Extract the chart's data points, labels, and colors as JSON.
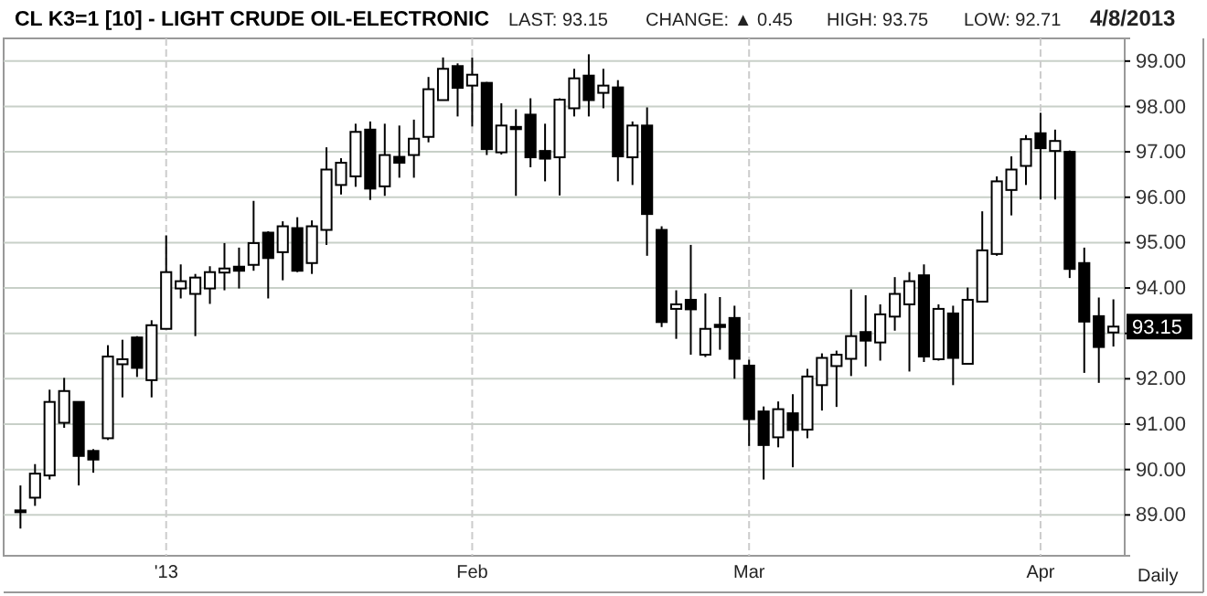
{
  "chart_data": {
    "type": "candlestick",
    "title": "CL K3=1 [10] - LIGHT CRUDE OIL-ELECTRONIC",
    "annotations": [
      "LAST: 93.15",
      "CHANGE: ▲ 0.45",
      "HIGH: 93.75",
      "LOW: 92.71",
      "4/8/2013",
      "Daily",
      {
        "text": "93.15",
        "y": 93.15
      }
    ],
    "categories": [
      null,
      null,
      null,
      null,
      null,
      null,
      null,
      null,
      null,
      null,
      "'13",
      null,
      null,
      null,
      null,
      null,
      null,
      null,
      null,
      null,
      null,
      null,
      null,
      null,
      null,
      null,
      null,
      null,
      null,
      null,
      null,
      "Feb",
      null,
      null,
      null,
      null,
      null,
      null,
      null,
      null,
      null,
      null,
      null,
      null,
      null,
      null,
      null,
      null,
      null,
      null,
      "Mar",
      null,
      null,
      null,
      null,
      null,
      null,
      null,
      null,
      null,
      null,
      null,
      null,
      null,
      null,
      null,
      null,
      null,
      null,
      null,
      "Apr",
      null,
      null,
      null,
      null,
      null
    ],
    "series": [
      {
        "color": "#000000",
        "ohlc": [
          [
            89.1,
            89.65,
            88.7,
            89.1
          ],
          [
            89.38,
            90.12,
            89.2,
            89.91
          ],
          [
            89.87,
            91.76,
            89.78,
            91.49
          ],
          [
            91.03,
            92.02,
            90.92,
            91.73
          ],
          [
            91.49,
            91.49,
            89.65,
            90.3
          ],
          [
            90.41,
            90.45,
            89.93,
            90.22
          ],
          [
            90.69,
            92.74,
            90.65,
            92.49
          ],
          [
            92.32,
            92.86,
            91.59,
            92.43
          ],
          [
            92.91,
            92.94,
            92.04,
            92.24
          ],
          [
            91.97,
            93.29,
            91.59,
            93.18
          ],
          [
            93.1,
            95.16,
            93.1,
            94.35
          ],
          [
            93.99,
            94.52,
            93.77,
            94.15
          ],
          [
            93.87,
            94.31,
            92.94,
            94.23
          ],
          [
            93.99,
            94.48,
            93.65,
            94.35
          ],
          [
            94.34,
            94.99,
            93.95,
            94.43
          ],
          [
            94.47,
            94.89,
            93.99,
            94.38
          ],
          [
            94.51,
            95.92,
            94.38,
            94.99
          ],
          [
            95.22,
            95.25,
            93.77,
            94.66
          ],
          [
            94.79,
            95.47,
            94.17,
            95.36
          ],
          [
            95.32,
            95.56,
            94.35,
            94.38
          ],
          [
            94.55,
            95.49,
            94.31,
            95.36
          ],
          [
            95.28,
            97.1,
            94.95,
            96.61
          ],
          [
            96.27,
            96.86,
            96.06,
            96.76
          ],
          [
            96.46,
            97.62,
            96.23,
            97.44
          ],
          [
            97.49,
            97.67,
            95.94,
            96.19
          ],
          [
            96.24,
            97.62,
            96.03,
            96.93
          ],
          [
            96.89,
            97.58,
            96.43,
            96.76
          ],
          [
            96.93,
            97.71,
            96.43,
            97.29
          ],
          [
            97.33,
            98.65,
            97.21,
            98.38
          ],
          [
            98.14,
            99.08,
            98.14,
            98.83
          ],
          [
            98.89,
            98.95,
            97.78,
            98.41
          ],
          [
            98.46,
            99.08,
            97.56,
            98.7
          ],
          [
            98.52,
            98.54,
            96.93,
            97.06
          ],
          [
            96.99,
            98.07,
            96.94,
            97.58
          ],
          [
            97.55,
            97.94,
            96.03,
            97.5
          ],
          [
            97.82,
            98.18,
            96.66,
            96.88
          ],
          [
            97.02,
            97.62,
            96.35,
            96.85
          ],
          [
            96.88,
            98.18,
            96.04,
            98.15
          ],
          [
            97.96,
            98.83,
            97.78,
            98.62
          ],
          [
            98.68,
            99.15,
            97.78,
            98.14
          ],
          [
            98.3,
            98.83,
            97.96,
            98.46
          ],
          [
            98.42,
            98.58,
            96.35,
            96.9
          ],
          [
            96.88,
            97.67,
            96.27,
            97.58
          ],
          [
            97.58,
            97.98,
            94.71,
            95.63
          ],
          [
            95.28,
            95.36,
            93.14,
            93.25
          ],
          [
            93.54,
            93.95,
            92.88,
            93.64
          ],
          [
            93.74,
            94.95,
            92.53,
            93.53
          ],
          [
            92.53,
            93.88,
            92.48,
            93.1
          ],
          [
            93.19,
            93.8,
            92.64,
            93.14
          ],
          [
            93.34,
            93.61,
            92.0,
            92.44
          ],
          [
            92.29,
            92.42,
            90.52,
            91.11
          ],
          [
            91.28,
            91.39,
            89.78,
            90.54
          ],
          [
            90.71,
            91.5,
            90.49,
            91.33
          ],
          [
            91.24,
            91.66,
            90.05,
            90.87
          ],
          [
            90.88,
            92.22,
            90.69,
            92.05
          ],
          [
            91.86,
            92.56,
            91.3,
            92.46
          ],
          [
            92.28,
            92.62,
            91.38,
            92.53
          ],
          [
            92.44,
            93.97,
            92.06,
            92.94
          ],
          [
            93.03,
            93.84,
            92.27,
            92.84
          ],
          [
            92.8,
            93.64,
            92.4,
            93.42
          ],
          [
            93.37,
            94.24,
            93.06,
            93.87
          ],
          [
            93.64,
            94.35,
            92.16,
            94.15
          ],
          [
            94.28,
            94.52,
            92.37,
            92.49
          ],
          [
            92.43,
            93.64,
            92.4,
            93.54
          ],
          [
            93.44,
            93.61,
            91.86,
            92.46
          ],
          [
            92.33,
            94.01,
            92.33,
            93.74
          ],
          [
            93.7,
            95.69,
            93.7,
            94.83
          ],
          [
            94.75,
            96.46,
            94.71,
            96.35
          ],
          [
            96.16,
            96.9,
            95.6,
            96.61
          ],
          [
            96.69,
            97.37,
            96.27,
            97.28
          ],
          [
            97.41,
            97.86,
            95.95,
            97.08
          ],
          [
            97.02,
            97.49,
            95.95,
            97.24
          ],
          [
            97.0,
            97.03,
            94.22,
            94.42
          ],
          [
            94.55,
            94.89,
            92.13,
            93.26
          ],
          [
            93.38,
            93.79,
            91.91,
            92.7
          ],
          [
            93.02,
            93.75,
            92.71,
            93.15
          ]
        ]
      }
    ],
    "ylim": [
      88.1,
      99.5
    ],
    "yticks": [
      {
        "value": 89,
        "label": "89.00"
      },
      {
        "value": 90,
        "label": "90.00"
      },
      {
        "value": 91,
        "label": "91.00"
      },
      {
        "value": 92,
        "label": "92.00"
      },
      {
        "value": 93,
        "label": null
      },
      {
        "value": 94,
        "label": "94.00"
      },
      {
        "value": 95,
        "label": "95.00"
      },
      {
        "value": 96,
        "label": "96.00"
      },
      {
        "value": 97,
        "label": "97.00"
      },
      {
        "value": 98,
        "label": "98.00"
      },
      {
        "value": 99,
        "label": "99.00"
      }
    ],
    "grid": true
  }
}
